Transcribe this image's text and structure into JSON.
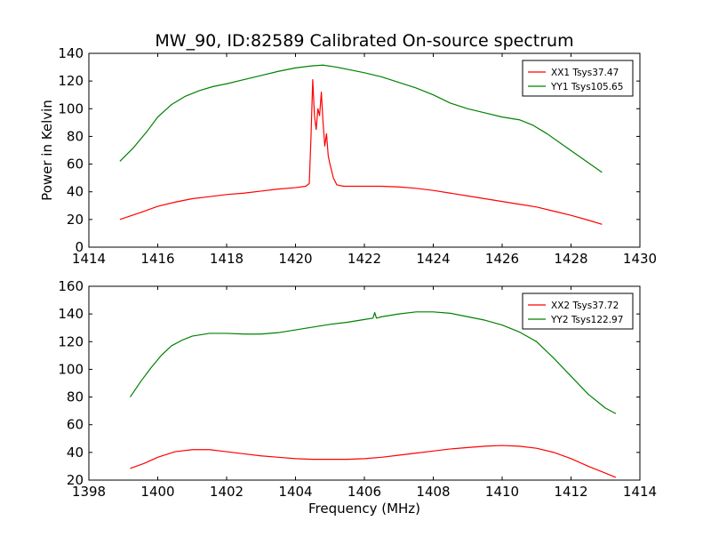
{
  "chart_data": [
    {
      "type": "line",
      "title": "MW_90, ID:82589 Calibrated On-source spectrum",
      "xlabel": "",
      "ylabel": "Power in Kelvin",
      "xlim": [
        1414,
        1430
      ],
      "ylim": [
        0,
        140
      ],
      "xticks": [
        1414,
        1416,
        1418,
        1420,
        1422,
        1424,
        1426,
        1428,
        1430
      ],
      "yticks": [
        0,
        20,
        40,
        60,
        80,
        100,
        120,
        140
      ],
      "grid": false,
      "legend_position": "top-right",
      "series": [
        {
          "name": "XX1 Tsys37.47",
          "color": "#ff0000",
          "x": [
            1414.9,
            1415.5,
            1416.0,
            1416.5,
            1417.0,
            1417.5,
            1418.0,
            1418.5,
            1419.0,
            1419.5,
            1420.0,
            1420.3,
            1420.4,
            1420.45,
            1420.5,
            1420.55,
            1420.6,
            1420.65,
            1420.7,
            1420.75,
            1420.8,
            1420.85,
            1420.9,
            1420.95,
            1421.0,
            1421.1,
            1421.2,
            1421.4,
            1422.0,
            1422.5,
            1423.0,
            1423.5,
            1424.0,
            1424.5,
            1425.0,
            1425.5,
            1426.0,
            1426.5,
            1427.0,
            1427.5,
            1428.0,
            1428.5,
            1428.9
          ],
          "y": [
            20,
            25,
            29.5,
            32.5,
            35,
            36.5,
            38,
            39,
            40.5,
            42,
            43,
            44,
            46,
            80,
            121,
            95,
            85,
            100,
            95,
            112,
            90,
            73,
            82,
            66,
            60,
            50,
            45,
            44,
            44,
            44,
            43.5,
            42.5,
            41,
            39,
            37,
            35,
            33,
            31,
            29,
            26,
            23,
            19.5,
            16.5
          ]
        },
        {
          "name": "YY1 Tsys105.65",
          "color": "#008000",
          "x": [
            1414.9,
            1415.3,
            1415.7,
            1416.0,
            1416.4,
            1416.8,
            1417.2,
            1417.6,
            1418.0,
            1418.5,
            1419.0,
            1419.5,
            1420.0,
            1420.5,
            1420.8,
            1421.2,
            1421.6,
            1422.0,
            1422.5,
            1423.0,
            1423.5,
            1424.0,
            1424.5,
            1425.0,
            1425.5,
            1426.0,
            1426.5,
            1426.9,
            1427.3,
            1427.7,
            1428.1,
            1428.5,
            1428.9
          ],
          "y": [
            62,
            72,
            84,
            94,
            103,
            109,
            113,
            116,
            118,
            121,
            124,
            127,
            129.5,
            131,
            131.5,
            130,
            128,
            126,
            123,
            119,
            115,
            110,
            104,
            100,
            97,
            94,
            92,
            88,
            82,
            75,
            68,
            61,
            54
          ]
        }
      ]
    },
    {
      "type": "line",
      "title": "",
      "xlabel": "Frequency (MHz)",
      "ylabel": "",
      "xlim": [
        1398,
        1414
      ],
      "ylim": [
        20,
        160
      ],
      "xticks": [
        1398,
        1400,
        1402,
        1404,
        1406,
        1408,
        1410,
        1412,
        1414
      ],
      "yticks": [
        20,
        40,
        60,
        80,
        100,
        120,
        140,
        160
      ],
      "grid": false,
      "legend_position": "top-right",
      "series": [
        {
          "name": "XX2 Tsys37.72",
          "color": "#ff0000",
          "x": [
            1399.2,
            1399.6,
            1400.0,
            1400.5,
            1401.0,
            1401.5,
            1402.0,
            1402.5,
            1403.0,
            1403.5,
            1404.0,
            1404.5,
            1405.0,
            1405.5,
            1406.0,
            1406.5,
            1407.0,
            1407.5,
            1408.0,
            1408.5,
            1409.0,
            1409.5,
            1410.0,
            1410.5,
            1411.0,
            1411.5,
            1412.0,
            1412.5,
            1413.0,
            1413.3
          ],
          "y": [
            28.5,
            32,
            36.5,
            40.5,
            42,
            42,
            40.5,
            39,
            37.5,
            36.5,
            35.5,
            35,
            35,
            35,
            35.5,
            36.5,
            38,
            39.5,
            41,
            42.5,
            43.5,
            44.5,
            45,
            44.5,
            43,
            40,
            35.5,
            30,
            25,
            22
          ]
        },
        {
          "name": "YY2 Tsys122.97",
          "color": "#008000",
          "x": [
            1399.2,
            1399.5,
            1399.8,
            1400.1,
            1400.4,
            1400.7,
            1401.0,
            1401.5,
            1402.0,
            1402.5,
            1403.0,
            1403.5,
            1404.0,
            1404.5,
            1405.0,
            1405.5,
            1406.0,
            1406.25,
            1406.3,
            1406.35,
            1406.5,
            1407.0,
            1407.5,
            1408.0,
            1408.5,
            1409.0,
            1409.5,
            1410.0,
            1410.5,
            1411.0,
            1411.5,
            1412.0,
            1412.5,
            1413.0,
            1413.3
          ],
          "y": [
            80,
            91,
            101,
            110,
            117,
            121,
            124,
            126,
            126,
            125.5,
            125.5,
            126.5,
            128.5,
            130.5,
            132.5,
            134,
            136,
            137,
            141,
            137,
            138,
            140,
            141.5,
            141.5,
            140.5,
            138,
            135.5,
            132,
            127,
            120,
            108,
            95,
            82,
            72,
            68
          ]
        }
      ]
    }
  ]
}
